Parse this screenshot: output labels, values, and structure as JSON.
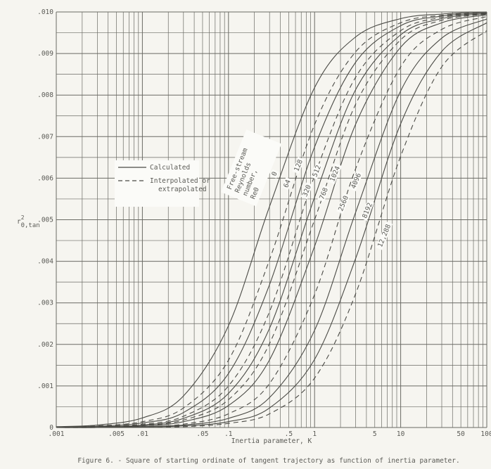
{
  "chart_data": {
    "type": "line",
    "caption": "Figure 6. - Square of starting ordinate of tangent trajectory as function of inertia parameter.",
    "xlabel": "Inertia parameter, K",
    "ylabel": {
      "base": "r",
      "sup": "2",
      "sub": "0,tan"
    },
    "x_scale": "log",
    "xlim": [
      0.001,
      100
    ],
    "ylim": [
      0,
      0.01
    ],
    "grid": true,
    "x_ticks": [
      {
        "value": 0.001,
        "label": ".001"
      },
      {
        "value": 0.005,
        "label": ".005"
      },
      {
        "value": 0.01,
        "label": ".01"
      },
      {
        "value": 0.05,
        "label": ".05"
      },
      {
        "value": 0.1,
        "label": ".1"
      },
      {
        "value": 0.5,
        "label": ".5"
      },
      {
        "value": 1,
        "label": "1"
      },
      {
        "value": 5,
        "label": "5"
      },
      {
        "value": 10,
        "label": "10"
      },
      {
        "value": 50,
        "label": "50"
      },
      {
        "value": 100,
        "label": "100"
      }
    ],
    "y_ticks": [
      {
        "value": 0,
        "label": "0"
      },
      {
        "value": 0.001,
        "label": ".001"
      },
      {
        "value": 0.002,
        "label": ".002"
      },
      {
        "value": 0.003,
        "label": ".003"
      },
      {
        "value": 0.004,
        "label": ".004"
      },
      {
        "value": 0.005,
        "label": ".005"
      },
      {
        "value": 0.006,
        "label": ".006"
      },
      {
        "value": 0.007,
        "label": ".007"
      },
      {
        "value": 0.008,
        "label": ".008"
      },
      {
        "value": 0.009,
        "label": ".009"
      },
      {
        "value": 0.01,
        "label": ".010"
      }
    ],
    "legend": {
      "placement": "center-left",
      "entries": [
        {
          "style": "solid",
          "label": "Calculated"
        },
        {
          "style": "dashed",
          "label_lines": [
            "Interpolated or",
            "extrapolated"
          ]
        }
      ]
    },
    "series_header": [
      "Free-stream",
      "Reynolds",
      "number,",
      "Re0"
    ],
    "x": [
      0.001,
      0.003,
      0.01,
      0.03,
      0.1,
      0.3,
      1,
      3,
      10,
      30,
      100
    ],
    "series": [
      {
        "name": "0",
        "style": "solid",
        "values": [
          2e-05,
          6e-05,
          0.00023,
          0.00076,
          0.00245,
          0.00532,
          0.00818,
          0.0094,
          0.00984,
          0.00995,
          0.01
        ]
      },
      {
        "name": "64",
        "style": "dashed",
        "values": [
          1e-05,
          4e-05,
          0.00014,
          0.00047,
          0.00162,
          0.00404,
          0.00729,
          0.00904,
          0.00974,
          0.00992,
          0.00998
        ]
      },
      {
        "name": "128",
        "style": "solid",
        "values": [
          1e-05,
          3e-05,
          0.00011,
          0.00036,
          0.0013,
          0.00344,
          0.00675,
          0.00879,
          0.00967,
          0.0099,
          0.00998
        ]
      },
      {
        "name": "320",
        "style": "dashed",
        "values": [
          1e-05,
          2e-05,
          8e-05,
          0.00027,
          0.001,
          0.00279,
          0.00606,
          0.00843,
          0.00955,
          0.00987,
          0.00997
        ]
      },
      {
        "name": "512",
        "style": "solid",
        "values": [
          1e-05,
          2e-05,
          6e-05,
          0.00022,
          0.00082,
          0.00239,
          0.00554,
          0.00813,
          0.00945,
          0.00984,
          0.00996
        ]
      },
      {
        "name": "768",
        "style": "dashed",
        "values": [
          0,
          1e-05,
          5e-05,
          0.00018,
          0.00067,
          0.00202,
          0.005,
          0.00778,
          0.00933,
          0.0098,
          0.00995
        ]
      },
      {
        "name": "1024",
        "style": "solid",
        "values": [
          0,
          1e-05,
          4e-05,
          0.00014,
          0.00053,
          0.00163,
          0.00436,
          0.0073,
          0.00915,
          0.00974,
          0.00993
        ]
      },
      {
        "name": "2560",
        "style": "dashed",
        "values": [
          0,
          1e-05,
          2e-05,
          8e-05,
          0.00033,
          0.00106,
          0.0032,
          0.00623,
          0.00868,
          0.00958,
          0.00989
        ]
      },
      {
        "name": "4096",
        "style": "solid",
        "values": [
          0,
          0,
          2e-05,
          6e-05,
          0.00022,
          0.00072,
          0.00234,
          0.00518,
          0.0081,
          0.00937,
          0.00983
        ]
      },
      {
        "name": "8192",
        "style": "solid",
        "values": [
          0,
          0,
          1e-05,
          4e-05,
          0.00014,
          0.00047,
          0.00164,
          0.00407,
          0.00731,
          0.00905,
          0.00974
        ]
      },
      {
        "name": "12,288",
        "style": "dashed",
        "values": [
          0,
          0,
          1e-05,
          2e-05,
          0.0001,
          0.00033,
          0.00119,
          0.00322,
          0.00653,
          0.00868,
          0.00955
        ]
      }
    ],
    "colors": {
      "ink": "#4a4a45",
      "paper": "#f6f5f0"
    }
  }
}
